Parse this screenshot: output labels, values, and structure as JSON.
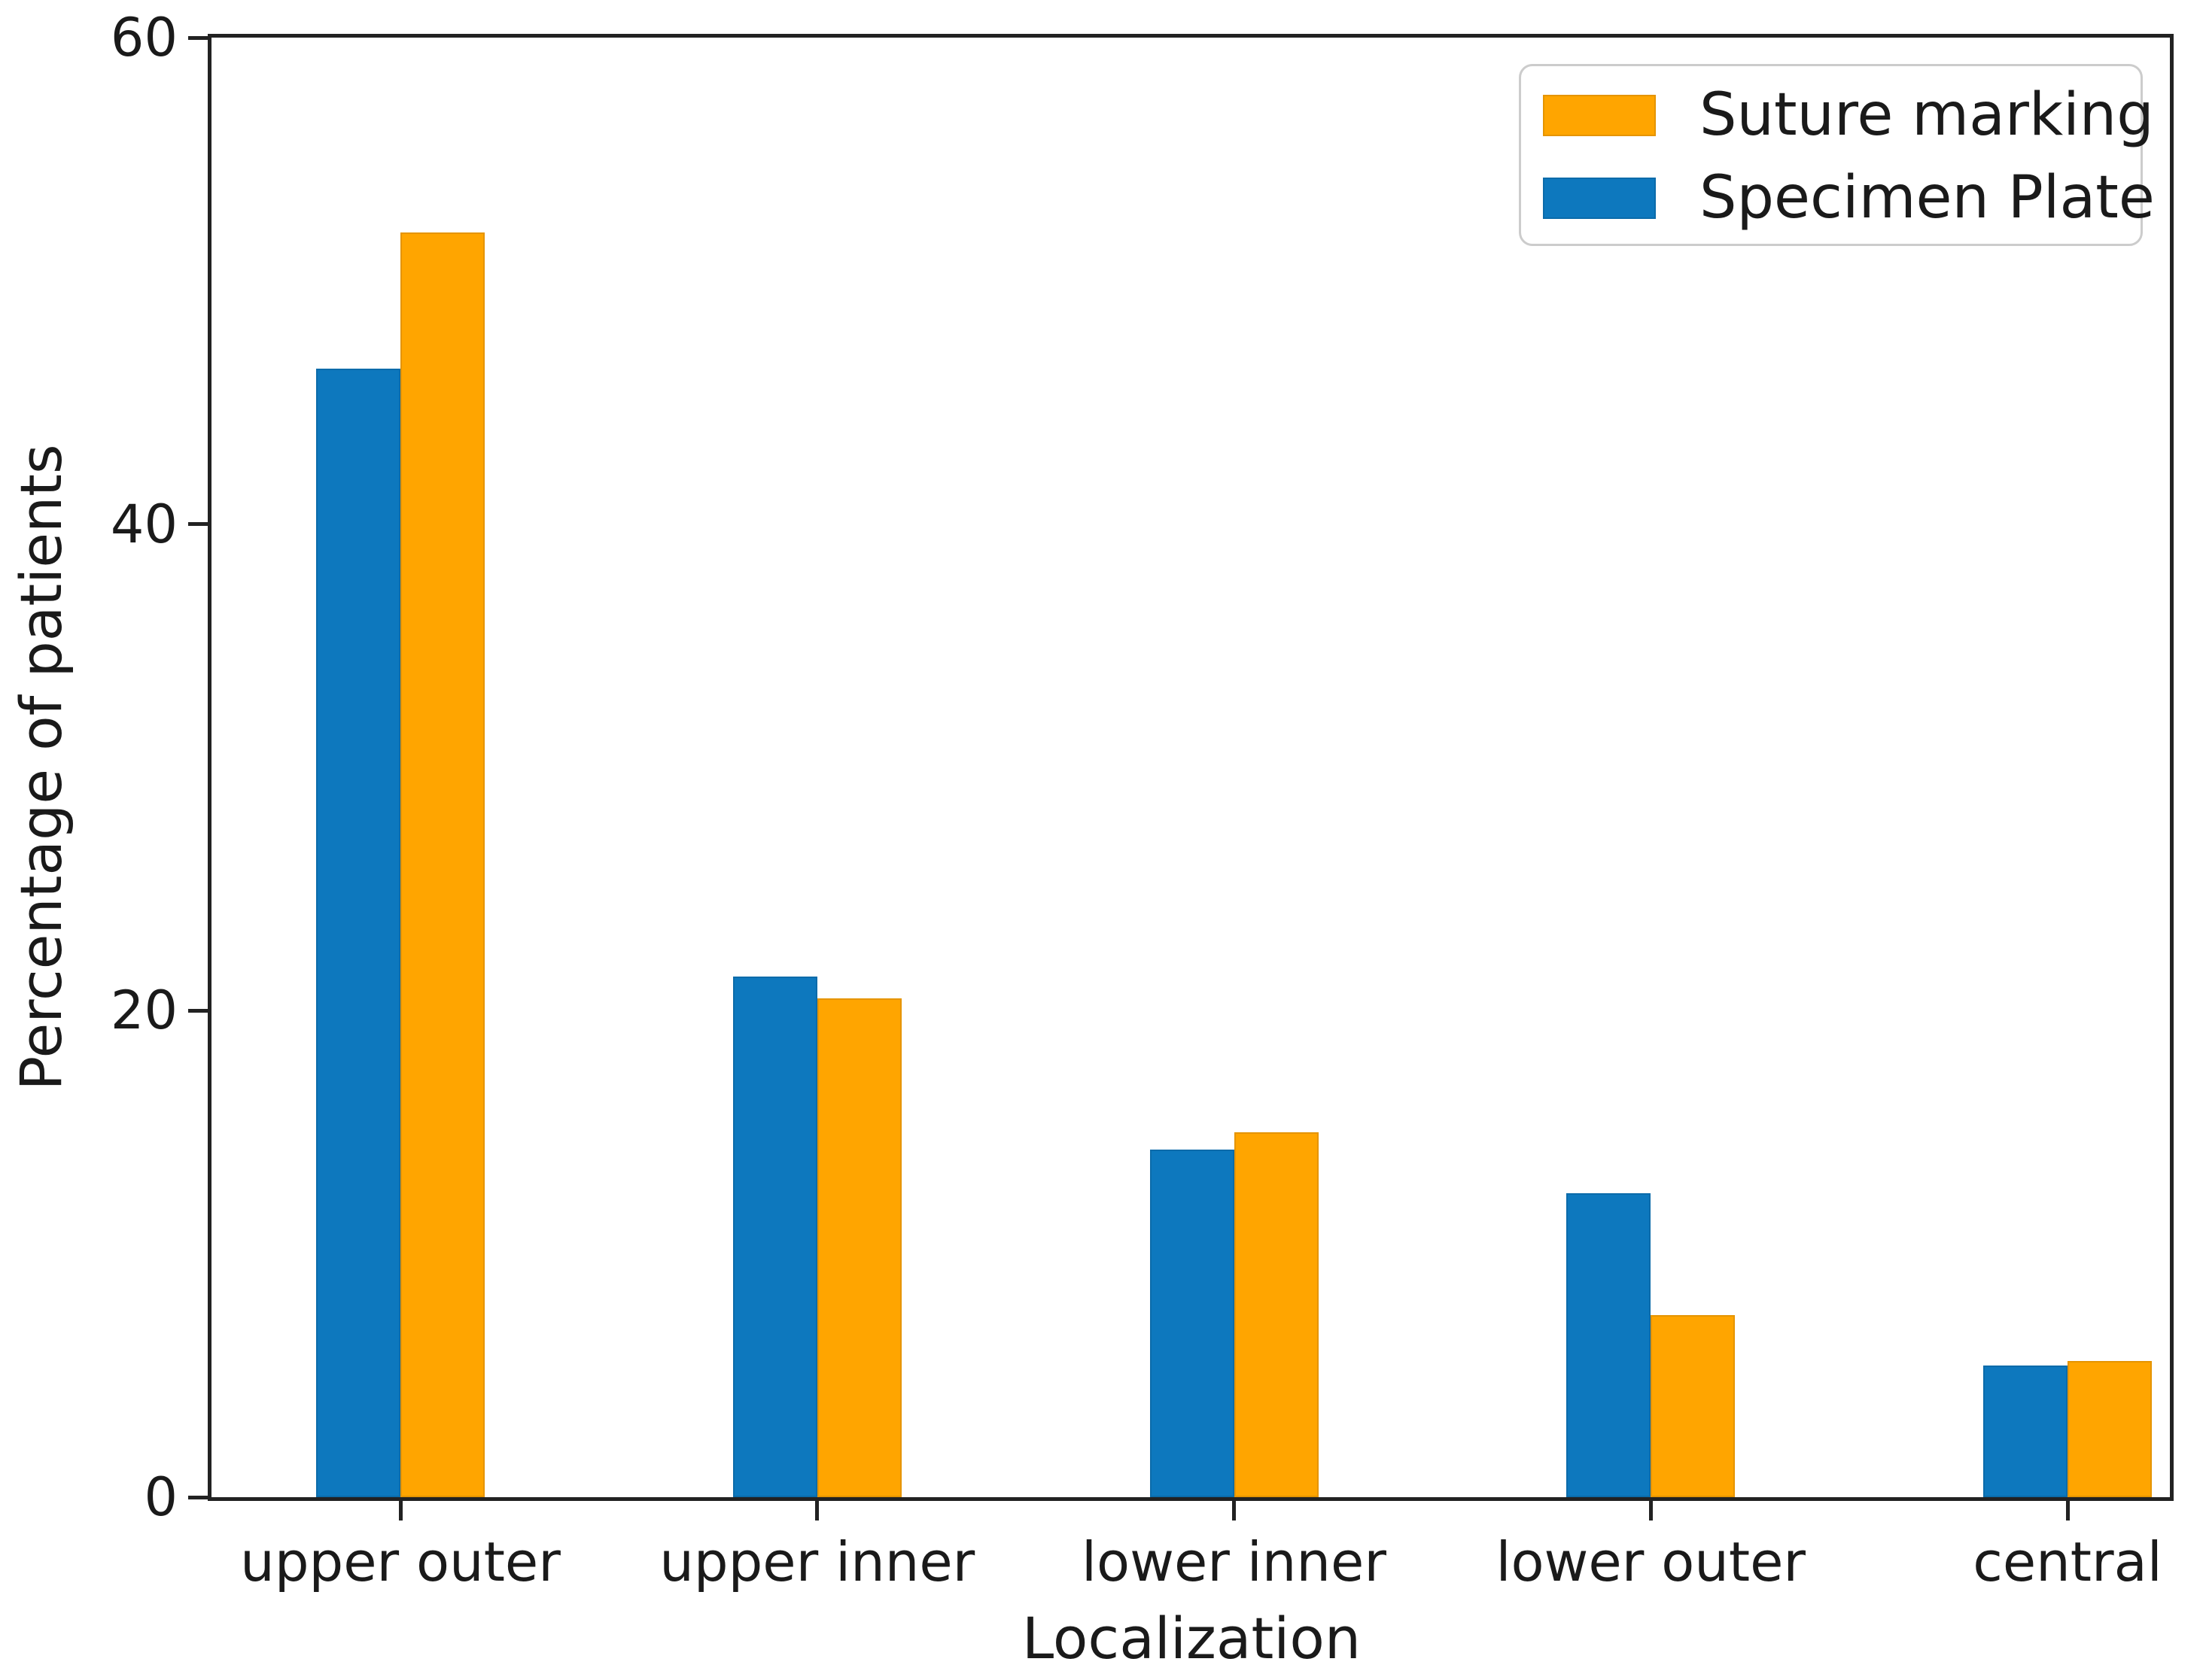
{
  "figure": {
    "background": "#ffffff",
    "axis_color": "#222222",
    "text_color": "#1a1a1a"
  },
  "chart_data": {
    "type": "bar",
    "title": "",
    "xlabel": "Localization",
    "ylabel": "Percentage of patients",
    "categories": [
      "upper outer",
      "upper inner",
      "lower inner",
      "lower outer",
      "central"
    ],
    "series": [
      {
        "name": "Suture marking",
        "color": "#ffa500",
        "side": "right",
        "values": [
          52.0,
          20.5,
          15.0,
          7.5,
          5.6
        ]
      },
      {
        "name": "Specimen Plate",
        "color": "#0d78be",
        "side": "left",
        "values": [
          46.4,
          21.4,
          14.3,
          12.5,
          5.4
        ]
      }
    ],
    "ylim": [
      0,
      60
    ],
    "yticks": [
      0,
      20,
      40,
      60
    ],
    "grid": false,
    "legend_position": "upper right"
  }
}
